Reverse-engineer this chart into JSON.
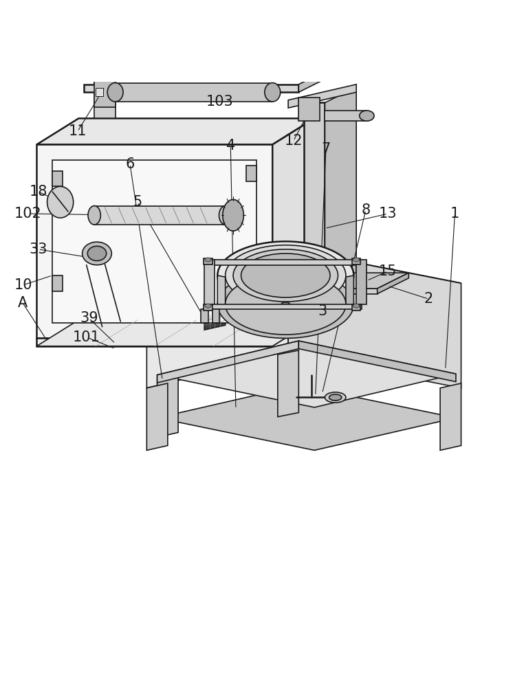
{
  "bg_color": "#ffffff",
  "line_color": "#1a1a1a",
  "line_width": 1.2,
  "thick_line": 1.8,
  "fig_width": 7.62,
  "fig_height": 10.0,
  "dpi": 100,
  "label_fontsize": 15
}
